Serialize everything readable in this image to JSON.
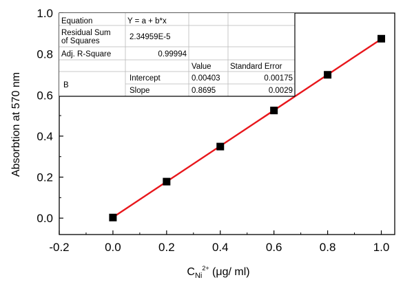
{
  "chart_data": {
    "type": "scatter",
    "title": "",
    "xlabel": "C",
    "xlabel_sub": "Ni",
    "xlabel_sup": "2+",
    "xlabel_unit": " (μg/ ml)",
    "ylabel": "Absorbtion at 570 nm",
    "xlim": [
      -0.2,
      1.05
    ],
    "ylim": [
      -0.08,
      1.0
    ],
    "xticks": [
      -0.2,
      0.0,
      0.2,
      0.4,
      0.6,
      0.8,
      1.0
    ],
    "xtick_labels": [
      "-0.2",
      "0.0",
      "0.2",
      "0.4",
      "0.6",
      "0.8",
      "1.0"
    ],
    "yticks": [
      0.0,
      0.2,
      0.4,
      0.6,
      0.8,
      1.0
    ],
    "ytick_labels": [
      "0.0",
      "0.2",
      "0.4",
      "0.6",
      "0.8",
      "1.0"
    ],
    "grid": false,
    "series": [
      {
        "marker": "square",
        "color": "#000000",
        "x": [
          0.0,
          0.2,
          0.4,
          0.6,
          0.8,
          1.0
        ],
        "y": [
          0.003,
          0.178,
          0.349,
          0.525,
          0.699,
          0.875
        ]
      }
    ],
    "fit": {
      "color": "#e8161b",
      "intercept": 0.00403,
      "slope": 0.8695,
      "x_range": [
        0.0,
        1.0
      ]
    },
    "fit_table": {
      "equation_label": "Equation",
      "equation_value": "Y = a + b*x",
      "rss_label_line1": "Residual Sum",
      "rss_label_line2": "of Squares",
      "rss_value": "2.34959E-5",
      "adjr_label": "Adj. R-Square",
      "adjr_value": "0.99994",
      "value_header": "Value",
      "stderr_header": "Standard Error",
      "series_label": "B",
      "intercept_label": "Intercept",
      "intercept_value": "0.00403",
      "intercept_stderr": "0.00175",
      "slope_label": "Slope",
      "slope_value": "0.8695",
      "slope_stderr": "0.0029"
    }
  }
}
